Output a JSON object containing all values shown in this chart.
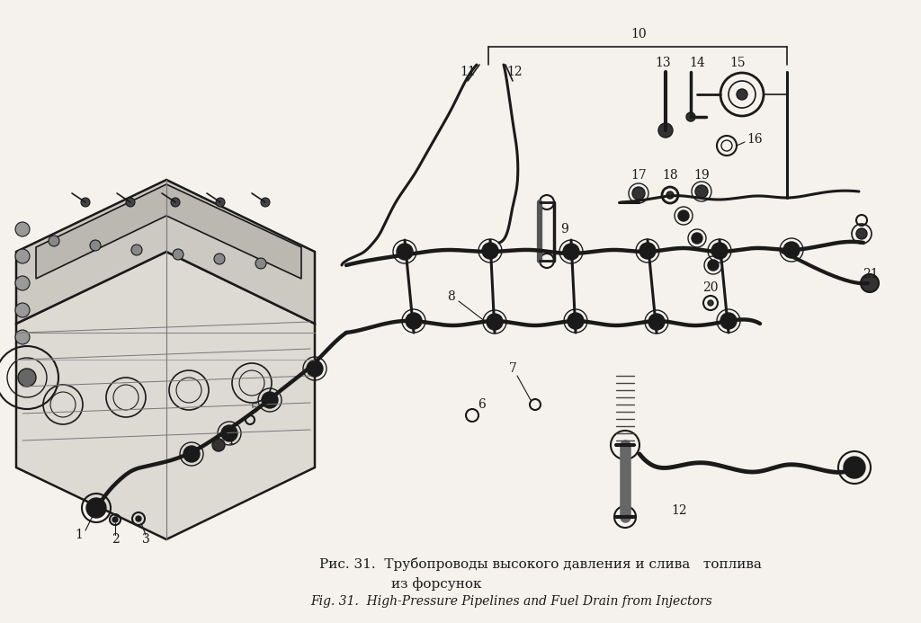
{
  "background_color": "#f5f2ed",
  "title_russian": "Рис. 31.  Трубопроводы высокого давления и слива   топлива",
  "title_russian_line2": "из форсунок",
  "title_english": "Fig. 31.  High-Pressure Pipelines and Fuel Drain from Injectors",
  "fig_width": 10.24,
  "fig_height": 6.93,
  "text_color": "#1a1a1a",
  "font_size_russian": 11.0,
  "font_size_english": 10.0,
  "paper_color": "#f5f2ed"
}
